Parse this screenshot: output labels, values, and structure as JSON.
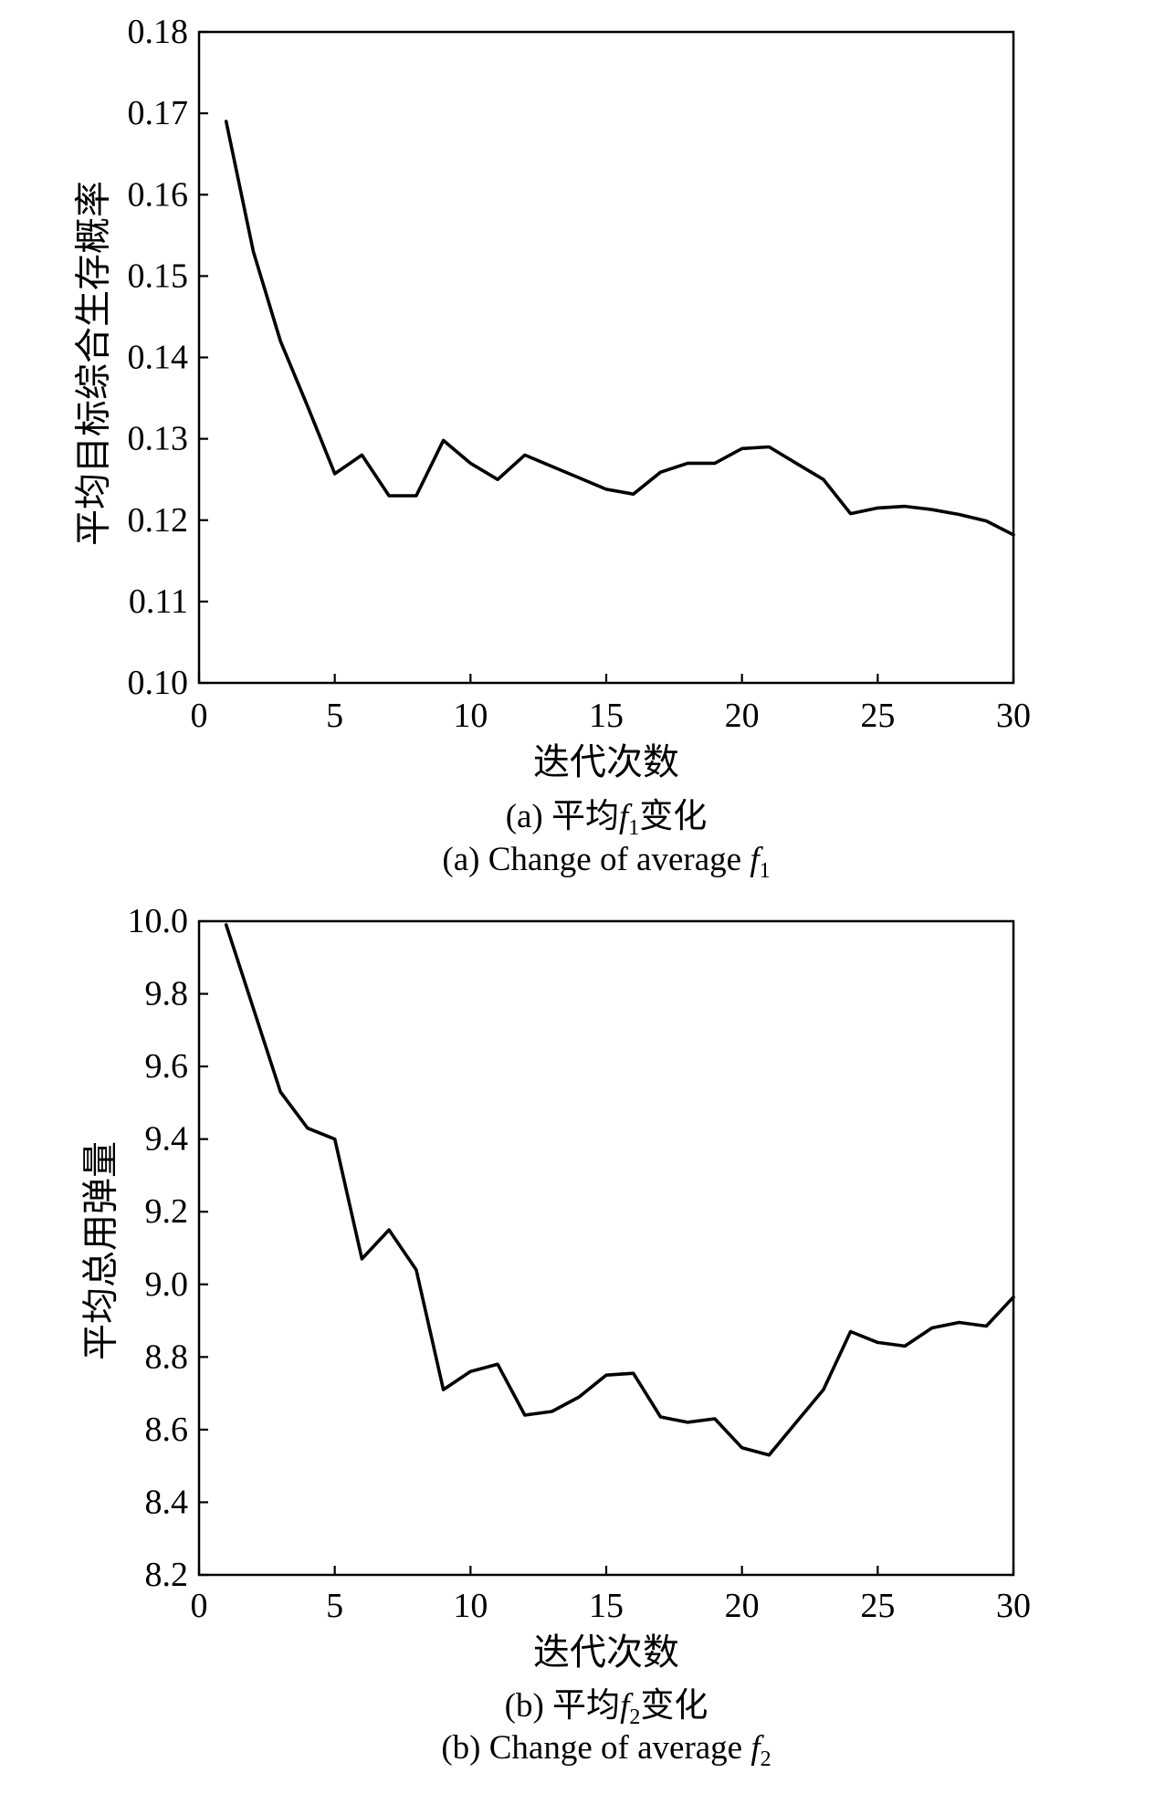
{
  "chart_data": [
    {
      "type": "line",
      "xlabel": "迭代次数",
      "ylabel": "平均目标综合生存概率",
      "xlim": [
        0,
        30
      ],
      "ylim": [
        0.1,
        0.18
      ],
      "grid": false,
      "x_ticks": [
        0,
        5,
        10,
        15,
        20,
        25,
        30
      ],
      "x_tick_labels": [
        "0",
        "5",
        "10",
        "15",
        "20",
        "25",
        "30"
      ],
      "y_ticks": [
        0.1,
        0.11,
        0.12,
        0.13,
        0.14,
        0.15,
        0.16,
        0.17,
        0.18
      ],
      "y_tick_labels": [
        "0.10",
        "0.11",
        "0.12",
        "0.13",
        "0.14",
        "0.15",
        "0.16",
        "0.17",
        "0.18"
      ],
      "caption_zh": {
        "prefix": "(a) 平均",
        "var": "f",
        "sub": "1",
        "suffix": "变化"
      },
      "caption_en": {
        "prefix": "(a) Change of average ",
        "var": "f",
        "sub": "1"
      },
      "series": [
        {
          "x": [
            1,
            2,
            3,
            4,
            5,
            6,
            7,
            8,
            9,
            10,
            11,
            12,
            13,
            14,
            15,
            16,
            17,
            18,
            19,
            20,
            21,
            22,
            23,
            24,
            25,
            26,
            27,
            28,
            29,
            30
          ],
          "y": [
            0.169,
            0.153,
            0.142,
            0.134,
            0.1257,
            0.128,
            0.123,
            0.123,
            0.1298,
            0.127,
            0.125,
            0.128,
            0.1266,
            0.1252,
            0.1238,
            0.1232,
            0.1259,
            0.127,
            0.127,
            0.1288,
            0.129,
            0.127,
            0.125,
            0.1208,
            0.1215,
            0.1217,
            0.1213,
            0.1207,
            0.1199,
            0.1182
          ]
        }
      ]
    },
    {
      "type": "line",
      "xlabel": "迭代次数",
      "ylabel": "平均总用弹量",
      "xlim": [
        0,
        30
      ],
      "ylim": [
        8.2,
        10.0
      ],
      "grid": false,
      "x_ticks": [
        0,
        5,
        10,
        15,
        20,
        25,
        30
      ],
      "x_tick_labels": [
        "0",
        "5",
        "10",
        "15",
        "20",
        "25",
        "30"
      ],
      "y_ticks": [
        8.2,
        8.4,
        8.6,
        8.8,
        9.0,
        9.2,
        9.4,
        9.6,
        9.8,
        10.0
      ],
      "y_tick_labels": [
        "8.2",
        "8.4",
        "8.6",
        "8.8",
        "9.0",
        "9.2",
        "9.4",
        "9.6",
        "9.8",
        "10.0"
      ],
      "caption_zh": {
        "prefix": "(b) 平均",
        "var": "f",
        "sub": "2",
        "suffix": "变化"
      },
      "caption_en": {
        "prefix": "(b) Change of average ",
        "var": "f",
        "sub": "2"
      },
      "series": [
        {
          "x": [
            1,
            2,
            3,
            4,
            5,
            6,
            7,
            8,
            9,
            10,
            11,
            12,
            13,
            14,
            15,
            16,
            17,
            18,
            19,
            20,
            21,
            22,
            23,
            24,
            25,
            26,
            27,
            28,
            29,
            30
          ],
          "y": [
            9.99,
            9.76,
            9.53,
            9.43,
            9.4,
            9.07,
            9.15,
            9.04,
            8.71,
            8.76,
            8.78,
            8.64,
            8.65,
            8.69,
            8.75,
            8.755,
            8.635,
            8.62,
            8.63,
            8.55,
            8.53,
            8.62,
            8.71,
            8.87,
            8.84,
            8.83,
            8.88,
            8.895,
            8.885,
            8.965
          ]
        }
      ]
    }
  ]
}
